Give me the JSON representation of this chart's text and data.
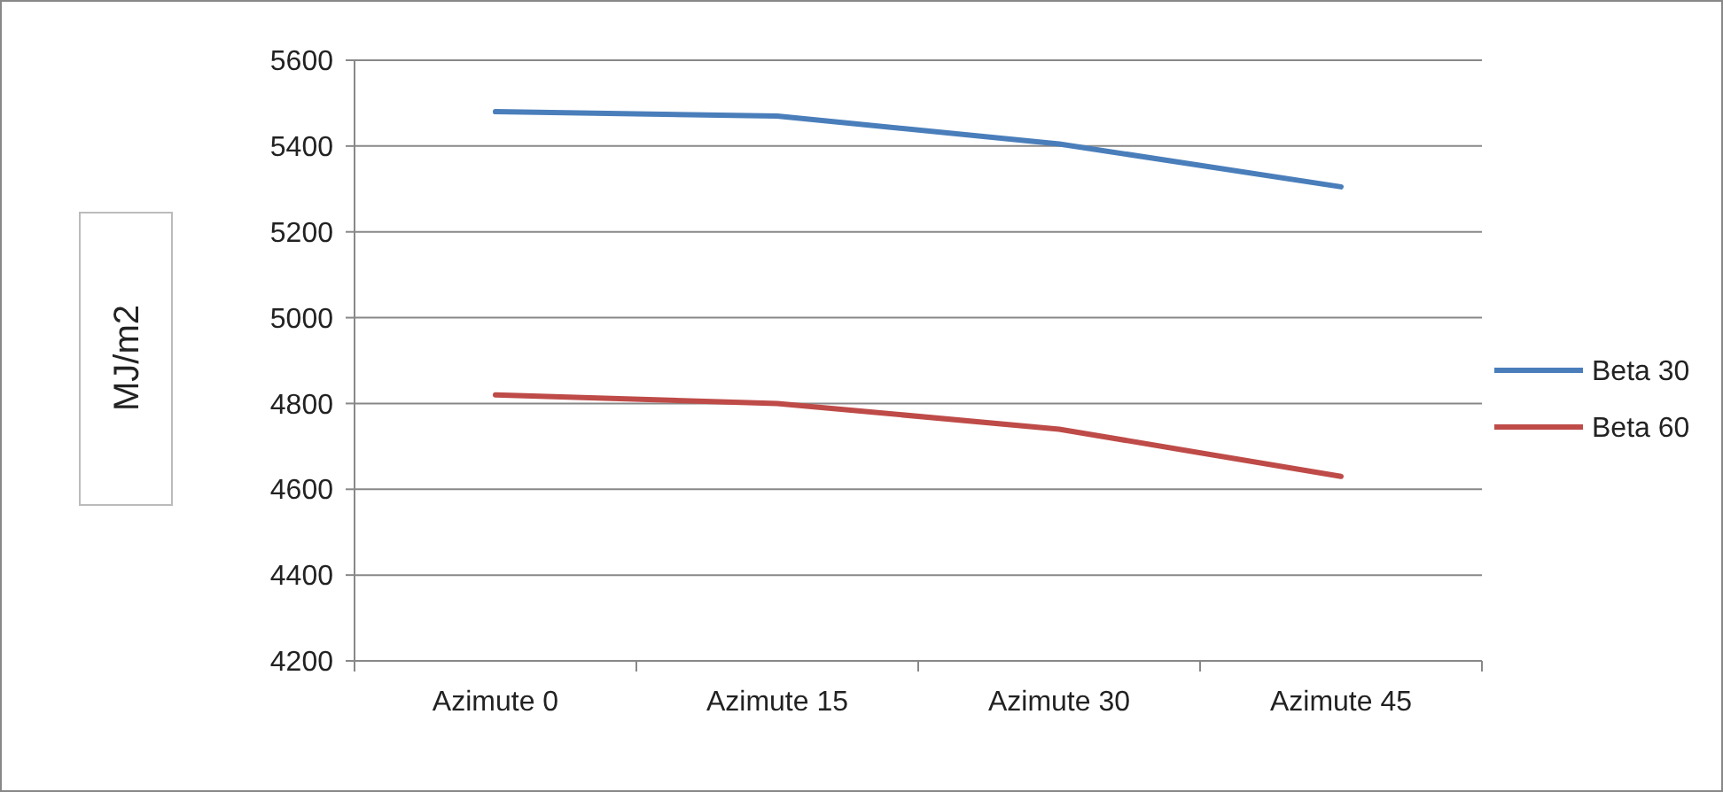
{
  "chart_data": {
    "type": "line",
    "ylabel": "MJ/m2",
    "categories": [
      "Azimute 0",
      "Azimute 15",
      "Azimute 30",
      "Azimute 45"
    ],
    "series": [
      {
        "name": "Beta 30",
        "color": "#4a7ebb",
        "values": [
          5480,
          5470,
          5405,
          5305
        ]
      },
      {
        "name": "Beta 60",
        "color": "#be4b48",
        "values": [
          4820,
          4800,
          4740,
          4630
        ]
      }
    ],
    "ylim": [
      4200,
      5600
    ],
    "yticks": [
      4200,
      4400,
      4600,
      4800,
      5000,
      5200,
      5400,
      5600
    ],
    "grid": "y",
    "legend": "right",
    "marker": "none",
    "line_style": "solid"
  }
}
